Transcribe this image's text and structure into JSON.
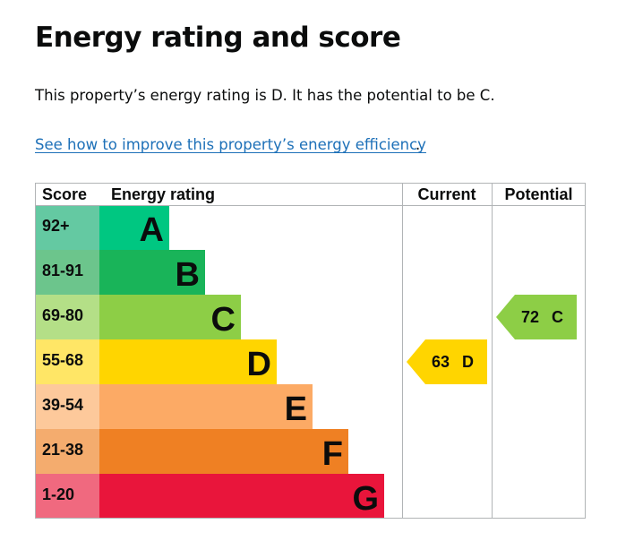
{
  "page": {
    "title": "Energy rating and score",
    "summary": "This property’s energy rating is D. It has the potential to be C.",
    "improve_link": "See how to improve this property’s energy efficiency",
    "improve_link_suffix": "."
  },
  "chart_data": {
    "type": "bar",
    "headers": {
      "score": "Score",
      "rating": "Energy rating",
      "current": "Current",
      "potential": "Potential"
    },
    "bands": [
      {
        "score": "92+",
        "letter": "A",
        "color": "#00c781",
        "score_bg": "#64c9a2"
      },
      {
        "score": "81-91",
        "letter": "B",
        "color": "#19b459",
        "score_bg": "#6cc58c"
      },
      {
        "score": "69-80",
        "letter": "C",
        "color": "#8dce46",
        "score_bg": "#b4df87"
      },
      {
        "score": "55-68",
        "letter": "D",
        "color": "#ffd500",
        "score_bg": "#ffe666"
      },
      {
        "score": "39-54",
        "letter": "E",
        "color": "#fcaa65",
        "score_bg": "#fdc99b"
      },
      {
        "score": "21-38",
        "letter": "F",
        "color": "#ef8023",
        "score_bg": "#f4ac6e"
      },
      {
        "score": "1-20",
        "letter": "G",
        "color": "#e9153b",
        "score_bg": "#f0697f"
      }
    ],
    "current": {
      "value": 63,
      "letter": "D",
      "label": "63  D",
      "color": "#ffd500"
    },
    "potential": {
      "value": 72,
      "letter": "C",
      "label": "72  C",
      "color": "#8dce46"
    }
  }
}
